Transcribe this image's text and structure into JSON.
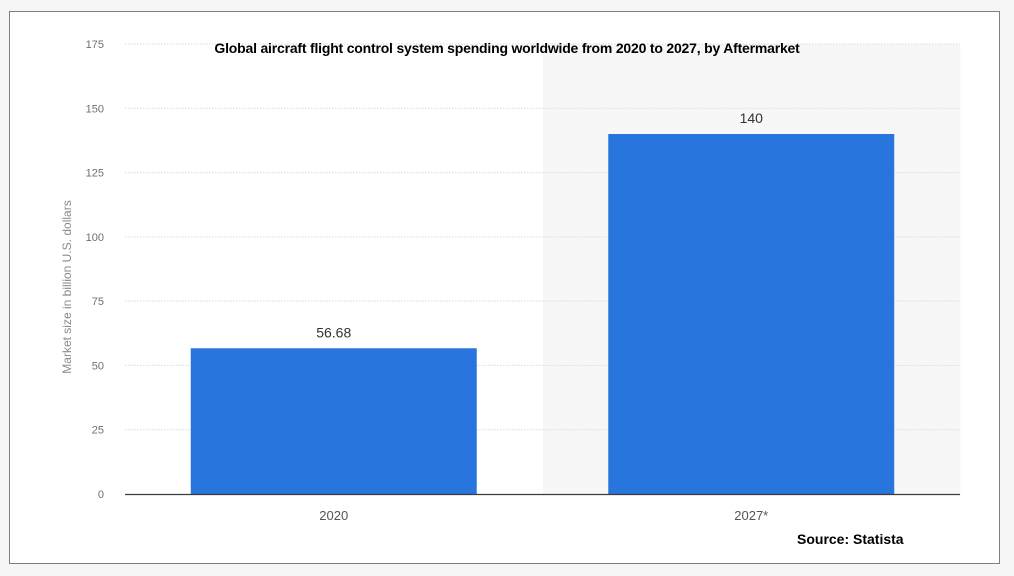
{
  "chart_data": {
    "type": "bar",
    "title": "Global aircraft flight control system spending worldwide from 2020 to 2027, by Aftermarket",
    "categories": [
      "2020",
      "2027*"
    ],
    "values": [
      56.68,
      140
    ],
    "value_labels": [
      "56.68",
      "140"
    ],
    "xlabel": "",
    "ylabel": "Market size in billion U.S. dollars",
    "ylim": [
      0,
      175
    ],
    "yticks": [
      0,
      25,
      50,
      75,
      100,
      125,
      150,
      175
    ],
    "grid": true,
    "legend": "none",
    "bar_color": "#2876dd",
    "highlight_forecast_region": true
  },
  "source": "Source: Statista"
}
